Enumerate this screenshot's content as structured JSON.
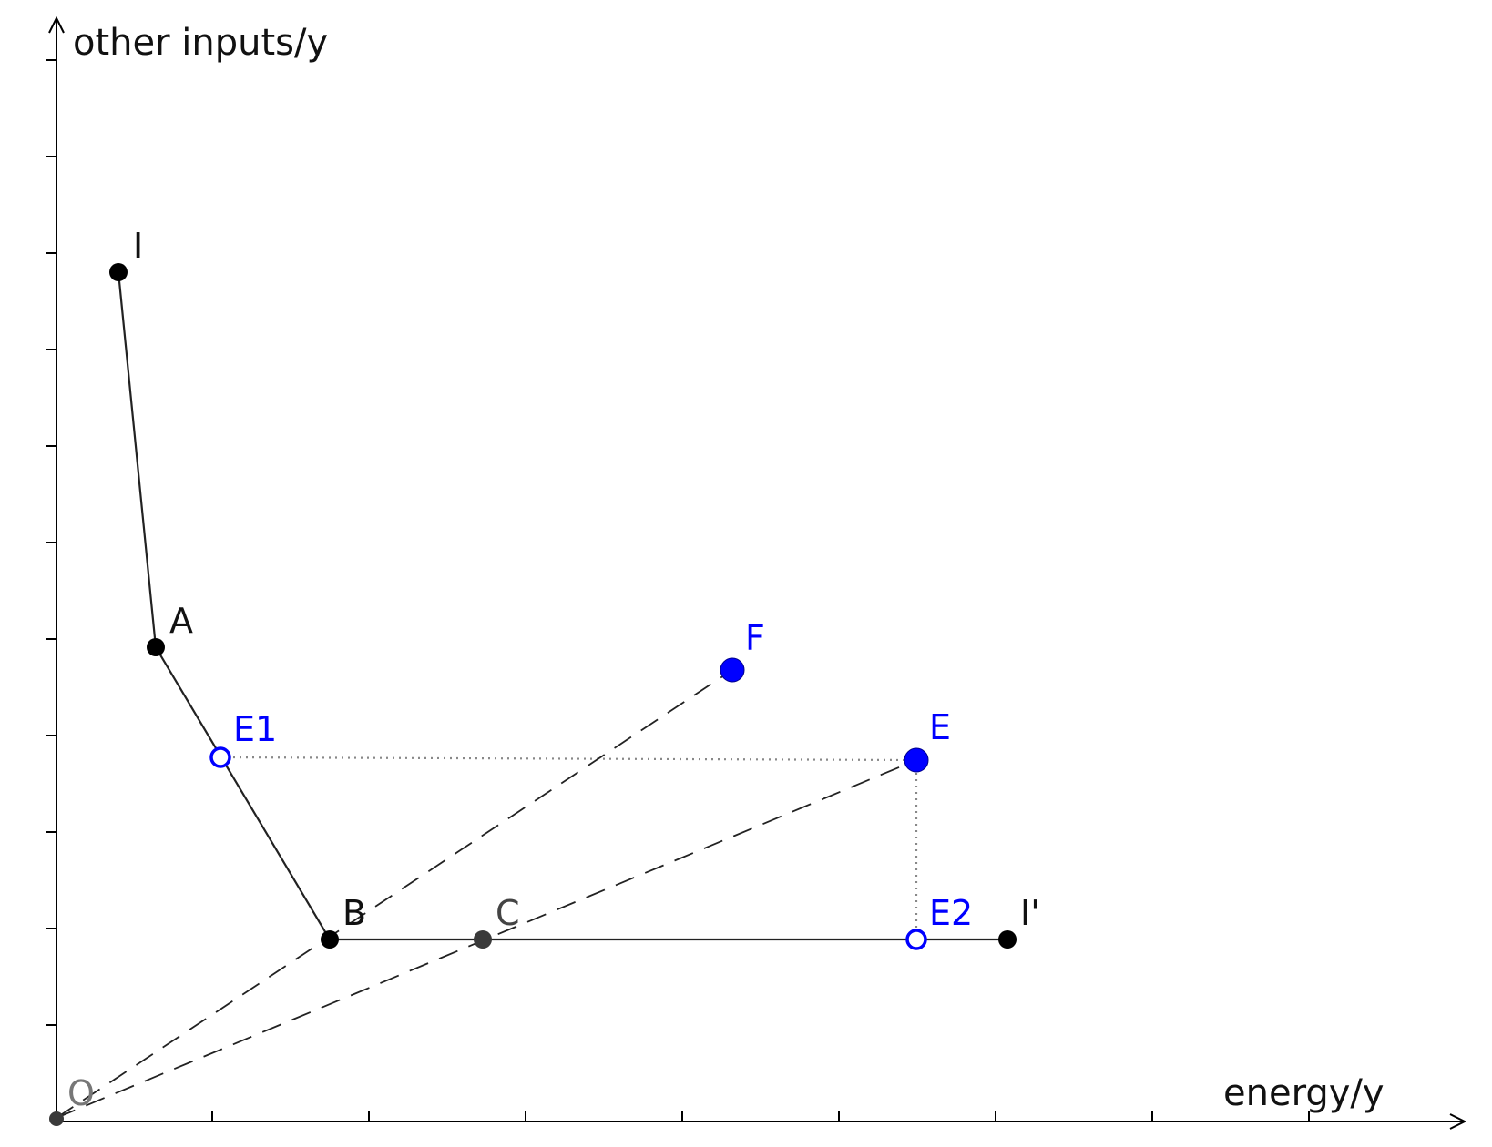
{
  "axes": {
    "x_label": "energy/y",
    "y_label": "other inputs/y"
  },
  "colors": {
    "black": "#000000",
    "curve": "#222222",
    "point_dark": "#3a3a3a",
    "point_blue": "#0000ff",
    "projection": "#888888",
    "origin_label": "#777777"
  },
  "points": {
    "O": {
      "label": "O",
      "style": "origin"
    },
    "I": {
      "label": "I",
      "style": "black"
    },
    "A": {
      "label": "A",
      "style": "black"
    },
    "B": {
      "label": "B",
      "style": "black"
    },
    "C": {
      "label": "C",
      "style": "dark"
    },
    "I_prime": {
      "label": "I'",
      "style": "black"
    },
    "E": {
      "label": "E",
      "style": "blue-filled"
    },
    "E1": {
      "label": "E1",
      "style": "blue-open"
    },
    "E2": {
      "label": "E2",
      "style": "blue-open"
    },
    "F": {
      "label": "F",
      "style": "blue-filled"
    }
  }
}
